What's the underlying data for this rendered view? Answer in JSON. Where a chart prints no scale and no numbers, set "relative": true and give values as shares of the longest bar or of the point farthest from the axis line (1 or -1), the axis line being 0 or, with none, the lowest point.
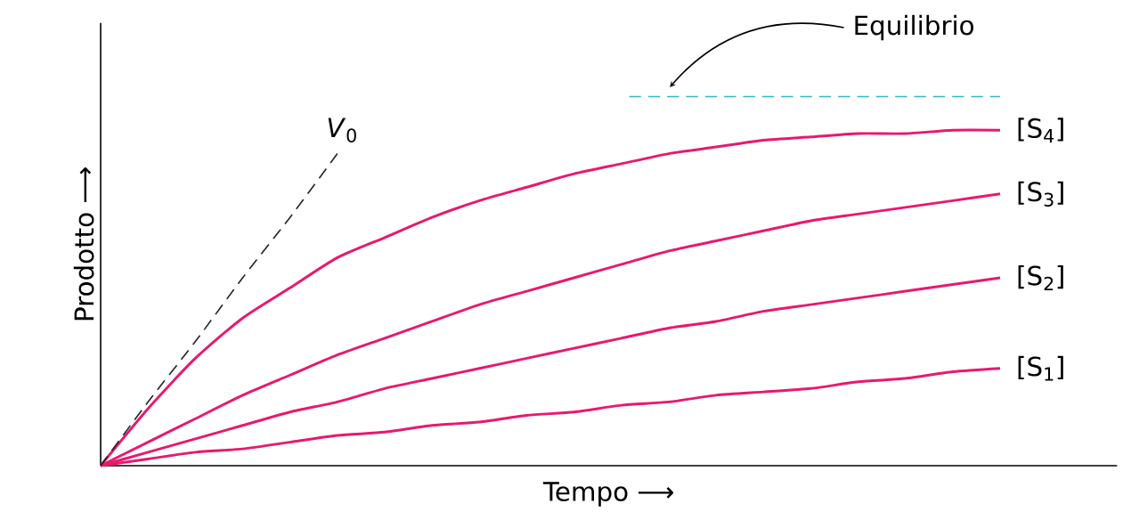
{
  "chart_data": {
    "type": "line",
    "relative": true,
    "xlabel": "Tempo ⟶",
    "ylabel": "Prodotto ⟶",
    "categories": [
      null,
      null,
      null,
      null,
      null,
      null,
      null,
      null,
      null,
      null,
      null,
      null,
      null,
      null,
      null,
      null,
      null,
      null,
      null,
      null
    ],
    "series": [
      {
        "name": "[S$_{4}$]",
        "color": "#e8196e",
        "values": [
          0,
          0.17,
          0.32,
          0.44,
          0.53,
          0.62,
          0.68,
          0.74,
          0.79,
          0.83,
          0.87,
          0.9,
          0.93,
          0.95,
          0.97,
          0.98,
          0.99,
          0.99,
          1.0,
          1.0
        ]
      },
      {
        "name": "[S$_{3}$]",
        "color": "#e8196e",
        "values": [
          0,
          0.07,
          0.14,
          0.21,
          0.27,
          0.33,
          0.38,
          0.43,
          0.48,
          0.52,
          0.56,
          0.6,
          0.64,
          0.67,
          0.7,
          0.73,
          0.75,
          0.77,
          0.79,
          0.81
        ]
      },
      {
        "name": "[S$_{2}$]",
        "color": "#e8196e",
        "values": [
          0,
          0.04,
          0.08,
          0.12,
          0.16,
          0.19,
          0.23,
          0.26,
          0.29,
          0.32,
          0.35,
          0.38,
          0.41,
          0.43,
          0.46,
          0.48,
          0.5,
          0.52,
          0.54,
          0.56
        ]
      },
      {
        "name": "[S$_{1}$]",
        "color": "#e8196e",
        "values": [
          0,
          0.02,
          0.04,
          0.05,
          0.07,
          0.09,
          0.1,
          0.12,
          0.13,
          0.15,
          0.16,
          0.18,
          0.19,
          0.21,
          0.22,
          0.23,
          0.25,
          0.26,
          0.28,
          0.29
        ]
      },
      {
        "name": "*V*$_{0}$",
        "color": "#222222",
        "line_style": "dashed",
        "values": [
          0,
          0.19,
          0.37,
          0.56,
          0.74,
          0.93,
          null,
          null,
          null,
          null,
          null,
          null,
          null,
          null,
          null,
          null,
          null,
          null,
          null,
          null
        ]
      }
    ],
    "ref_lines": [
      {
        "axis": "y",
        "value": 1.1,
        "label": "Equilibrio",
        "color": "#3ab5c5",
        "line_style": "dashed"
      }
    ]
  }
}
